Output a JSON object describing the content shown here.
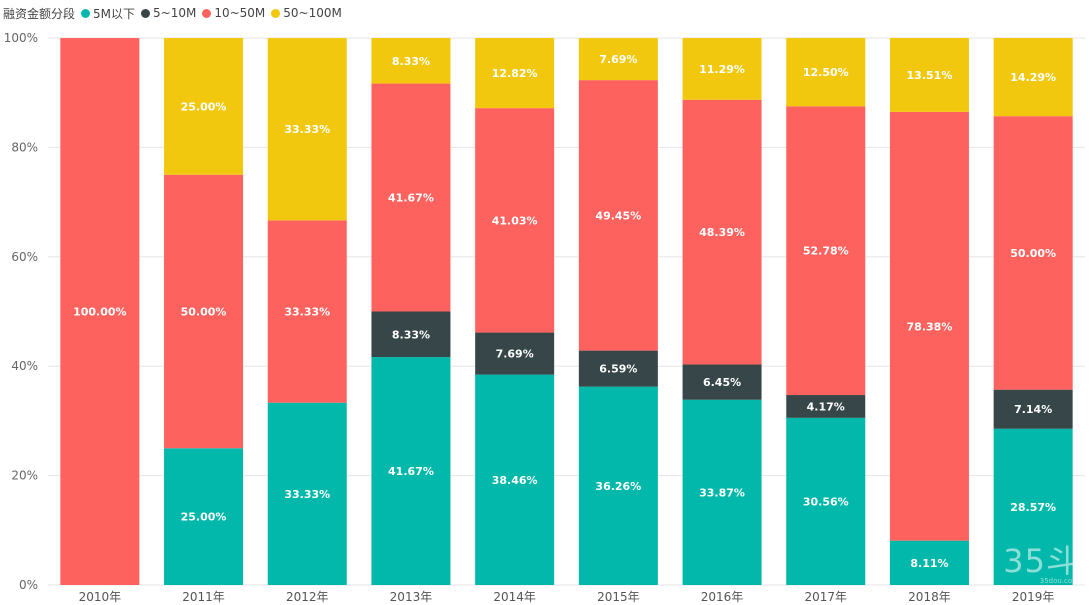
{
  "legend": {
    "title": "融资金额分段",
    "items": [
      {
        "label": "5M以下",
        "color": "#01b8aa"
      },
      {
        "label": "5~10M",
        "color": "#374649"
      },
      {
        "label": "10~50M",
        "color": "#fd625e"
      },
      {
        "label": "50~100M",
        "color": "#f2c80f"
      }
    ]
  },
  "chart_data": {
    "type": "bar",
    "stacked": true,
    "orientation": "vertical",
    "categories": [
      "2010年",
      "2011年",
      "2012年",
      "2013年",
      "2014年",
      "2015年",
      "2016年",
      "2017年",
      "2018年",
      "2019年"
    ],
    "series": [
      {
        "name": "5M以下",
        "color": "#01b8aa",
        "label_color": "#ffffff",
        "values": [
          0,
          25.0,
          33.33,
          41.67,
          38.46,
          36.26,
          33.87,
          30.56,
          8.11,
          28.57
        ]
      },
      {
        "name": "5~10M",
        "color": "#374649",
        "label_color": "#ffffff",
        "values": [
          0,
          0,
          0,
          8.33,
          7.69,
          6.59,
          6.45,
          4.17,
          0,
          7.14
        ]
      },
      {
        "name": "10~50M",
        "color": "#fd625e",
        "label_color": "#ffffff",
        "values": [
          100.0,
          50.0,
          33.33,
          41.67,
          41.03,
          49.45,
          48.39,
          52.78,
          78.38,
          50.0
        ]
      },
      {
        "name": "50~100M",
        "color": "#f2c80f",
        "label_color": "#ffffff",
        "values": [
          0,
          25.0,
          33.33,
          8.33,
          12.82,
          7.69,
          11.29,
          12.5,
          13.51,
          14.29
        ]
      }
    ],
    "y_ticks": [
      "0%",
      "20%",
      "40%",
      "60%",
      "80%",
      "100%"
    ],
    "ylim": [
      0,
      100
    ],
    "grid": true,
    "legend_position": "top-left",
    "title": "",
    "xlabel": "",
    "ylabel": ""
  },
  "watermark": {
    "big": "35斗",
    "small": "35dou.com"
  }
}
